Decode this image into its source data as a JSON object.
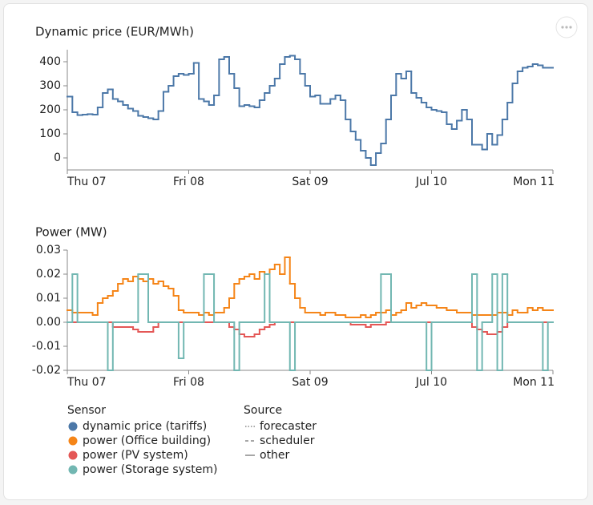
{
  "chart_data": [
    {
      "type": "step-line",
      "title": "Dynamic price (EUR/MWh)",
      "x": [
        0,
        1,
        2,
        3,
        4,
        5,
        6,
        7,
        8,
        9,
        10,
        11,
        12,
        13,
        14,
        15,
        16,
        17,
        18,
        19,
        20,
        21,
        22,
        23,
        24,
        25,
        26,
        27,
        28,
        29,
        30,
        31,
        32,
        33,
        34,
        35,
        36,
        37,
        38,
        39,
        40,
        41,
        42,
        43,
        44,
        45,
        46,
        47,
        48,
        49,
        50,
        51,
        52,
        53,
        54,
        55,
        56,
        57,
        58,
        59,
        60,
        61,
        62,
        63,
        64,
        65,
        66,
        67,
        68,
        69,
        70,
        71,
        72,
        73,
        74,
        75,
        76,
        77,
        78,
        79,
        80,
        81,
        82,
        83,
        84,
        85,
        86,
        87,
        88,
        89,
        90,
        91,
        92,
        93,
        94,
        95
      ],
      "xlim": [
        0,
        96
      ],
      "xticks": [
        {
          "value": 0,
          "label": "Thu 07"
        },
        {
          "value": 24,
          "label": "Fri 08"
        },
        {
          "value": 48,
          "label": "Sat 09"
        },
        {
          "value": 72,
          "label": "Jul 10"
        },
        {
          "value": 96,
          "label": "Mon 11"
        }
      ],
      "ylim": [
        -50,
        450
      ],
      "yticks": [
        0,
        100,
        200,
        300,
        400
      ],
      "series": [
        {
          "name": "dynamic price (tariffs)",
          "color": "#4c78a8",
          "values": [
            255,
            190,
            178,
            180,
            182,
            180,
            210,
            270,
            285,
            245,
            235,
            220,
            205,
            195,
            175,
            170,
            165,
            160,
            195,
            275,
            300,
            340,
            350,
            345,
            350,
            395,
            245,
            235,
            220,
            260,
            410,
            420,
            350,
            290,
            215,
            220,
            215,
            210,
            240,
            270,
            300,
            330,
            390,
            420,
            425,
            410,
            350,
            300,
            255,
            260,
            225,
            225,
            245,
            260,
            240,
            160,
            110,
            75,
            30,
            0,
            -30,
            20,
            60,
            160,
            260,
            350,
            330,
            360,
            270,
            250,
            230,
            210,
            200,
            195,
            190,
            140,
            120,
            155,
            200,
            160,
            55,
            55,
            35,
            100,
            55,
            95,
            160,
            230,
            310,
            360,
            375,
            380,
            390,
            385,
            375,
            375
          ]
        }
      ]
    },
    {
      "type": "step-line",
      "title": "Power (MW)",
      "x": [
        0,
        1,
        2,
        3,
        4,
        5,
        6,
        7,
        8,
        9,
        10,
        11,
        12,
        13,
        14,
        15,
        16,
        17,
        18,
        19,
        20,
        21,
        22,
        23,
        24,
        25,
        26,
        27,
        28,
        29,
        30,
        31,
        32,
        33,
        34,
        35,
        36,
        37,
        38,
        39,
        40,
        41,
        42,
        43,
        44,
        45,
        46,
        47,
        48,
        49,
        50,
        51,
        52,
        53,
        54,
        55,
        56,
        57,
        58,
        59,
        60,
        61,
        62,
        63,
        64,
        65,
        66,
        67,
        68,
        69,
        70,
        71,
        72,
        73,
        74,
        75,
        76,
        77,
        78,
        79,
        80,
        81,
        82,
        83,
        84,
        85,
        86,
        87,
        88,
        89,
        90,
        91,
        92,
        93,
        94,
        95
      ],
      "xlim": [
        0,
        96
      ],
      "xticks": [
        {
          "value": 0,
          "label": "Thu 07"
        },
        {
          "value": 24,
          "label": "Fri 08"
        },
        {
          "value": 48,
          "label": "Sat 09"
        },
        {
          "value": 72,
          "label": "Jul 10"
        },
        {
          "value": 96,
          "label": "Mon 11"
        }
      ],
      "ylim": [
        -0.02,
        0.03
      ],
      "yticks": [
        -0.02,
        -0.01,
        {
          "value": 0,
          "label": "0.00"
        },
        0.01,
        0.02,
        0.03
      ],
      "series": [
        {
          "name": "power (Office building)",
          "color": "#f58518",
          "values": [
            0.005,
            0.004,
            0.004,
            0.004,
            0.004,
            0.003,
            0.008,
            0.01,
            0.011,
            0.013,
            0.016,
            0.018,
            0.017,
            0.019,
            0.018,
            0.017,
            0.018,
            0.016,
            0.017,
            0.015,
            0.014,
            0.011,
            0.005,
            0.004,
            0.004,
            0.004,
            0.003,
            0.004,
            0.003,
            0.004,
            0.004,
            0.006,
            0.01,
            0.016,
            0.018,
            0.019,
            0.02,
            0.018,
            0.021,
            0.02,
            0.022,
            0.024,
            0.02,
            0.027,
            0.016,
            0.01,
            0.006,
            0.004,
            0.004,
            0.004,
            0.003,
            0.004,
            0.004,
            0.003,
            0.003,
            0.002,
            0.002,
            0.002,
            0.003,
            0.002,
            0.003,
            0.004,
            0.004,
            0.005,
            0.003,
            0.004,
            0.005,
            0.008,
            0.006,
            0.007,
            0.008,
            0.007,
            0.007,
            0.006,
            0.006,
            0.005,
            0.005,
            0.004,
            0.004,
            0.004,
            0.003,
            0.003,
            0.003,
            0.003,
            0.003,
            0.004,
            0.004,
            0.003,
            0.005,
            0.004,
            0.004,
            0.006,
            0.005,
            0.006,
            0.005,
            0.005
          ]
        },
        {
          "name": "power (PV system)",
          "color": "#e45756",
          "values": [
            0,
            0,
            0,
            0,
            0,
            0,
            0,
            0,
            0,
            -0.002,
            -0.002,
            -0.002,
            -0.002,
            -0.003,
            -0.004,
            -0.004,
            -0.004,
            -0.002,
            0,
            0,
            0,
            0,
            0,
            0,
            0,
            0,
            0,
            0,
            0,
            0,
            0,
            0,
            -0.002,
            -0.003,
            -0.005,
            -0.006,
            -0.006,
            -0.005,
            -0.003,
            -0.002,
            -0.001,
            0,
            0,
            0,
            0,
            0,
            0,
            0,
            0,
            0,
            0,
            0,
            0,
            0,
            0,
            0,
            -0.001,
            -0.001,
            -0.001,
            -0.002,
            -0.001,
            -0.001,
            -0.001,
            0,
            0,
            0,
            0,
            0,
            0,
            0,
            0,
            0,
            0,
            0,
            0,
            0,
            0,
            0,
            0,
            0,
            -0.002,
            -0.003,
            -0.004,
            -0.005,
            -0.005,
            -0.004,
            -0.002,
            0,
            0,
            0,
            0,
            0,
            0,
            0,
            0,
            0
          ]
        },
        {
          "name": "power (Storage system)",
          "color": "#72b7b2",
          "values": [
            0,
            0.02,
            0,
            0,
            0,
            0,
            0,
            0,
            -0.02,
            0,
            0,
            0,
            0,
            0,
            0.02,
            0.02,
            0,
            0,
            0,
            0,
            0,
            0,
            -0.015,
            0,
            0,
            0,
            0,
            0.02,
            0.02,
            0,
            0,
            0,
            0,
            -0.02,
            0,
            0,
            0,
            0,
            0,
            0.02,
            0,
            0,
            0,
            0,
            -0.02,
            0,
            0,
            0,
            0,
            0,
            0,
            0,
            0,
            0,
            0,
            0,
            0,
            0,
            0,
            0,
            0,
            0,
            0.02,
            0.02,
            0,
            0,
            0,
            0,
            0,
            0,
            0,
            -0.02,
            0,
            0,
            0,
            0,
            0,
            0,
            0,
            0,
            0.02,
            -0.02,
            0,
            0,
            0.02,
            -0.02,
            0.02,
            0,
            0,
            0,
            0,
            0,
            0,
            0,
            -0.02,
            0
          ]
        }
      ]
    }
  ],
  "legend": {
    "title": "Sensor"
  },
  "source_legend": {
    "title": "Source",
    "items": [
      "forecaster",
      "scheduler",
      "other"
    ]
  }
}
